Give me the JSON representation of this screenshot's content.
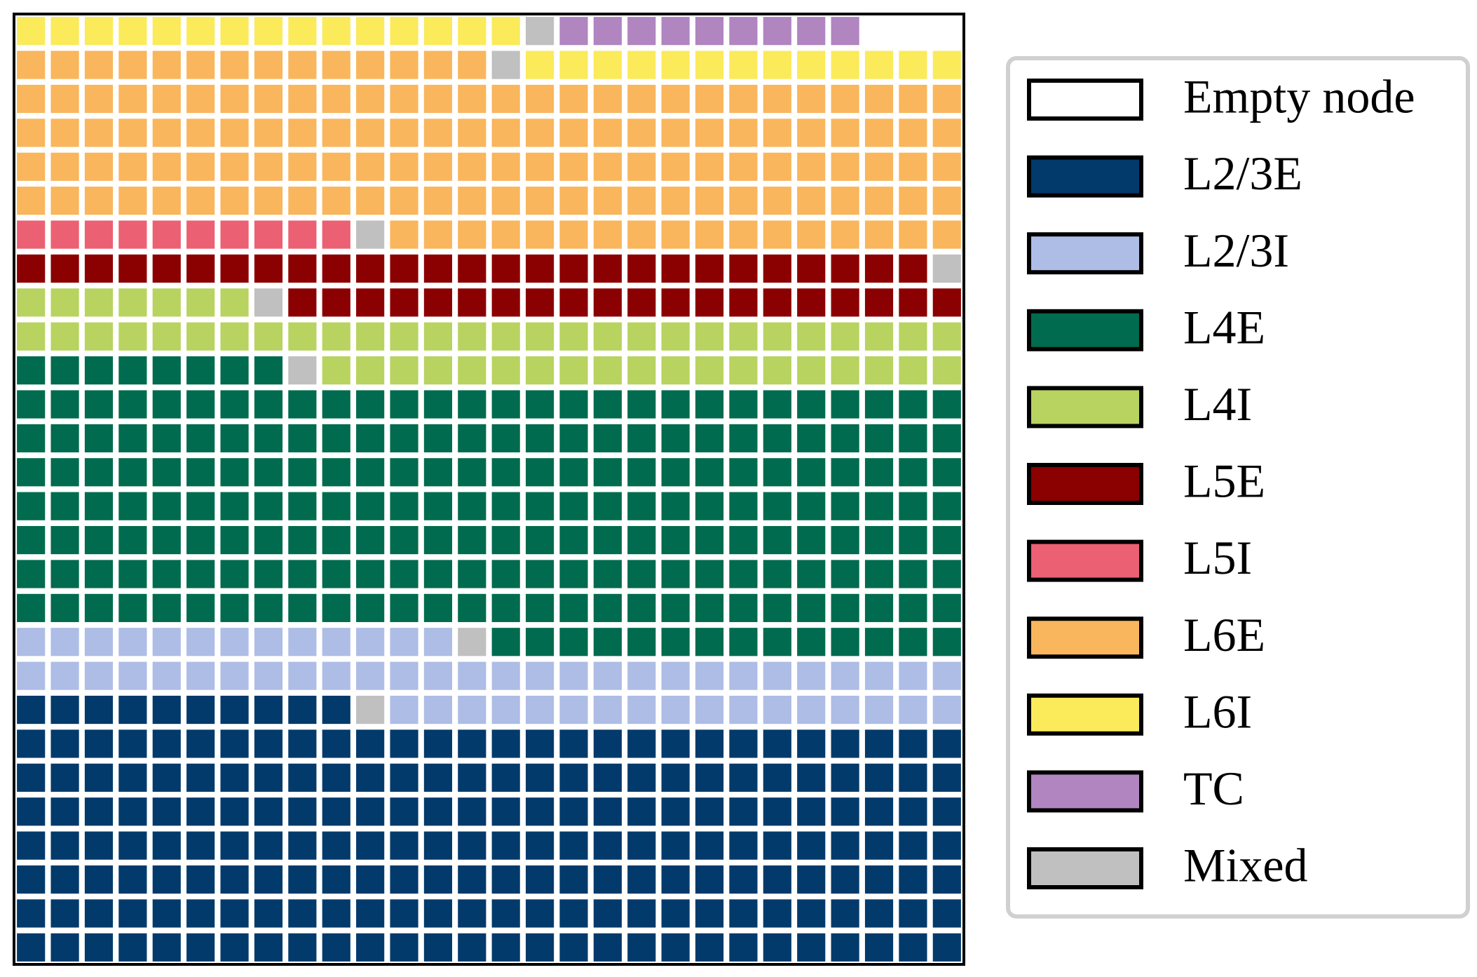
{
  "chart_data": {
    "type": "waffle",
    "series": [
      {
        "name": "Empty node",
        "color": "#ffffff",
        "value": 3
      },
      {
        "name": "L2/3E",
        "color": "#023a6b",
        "value": 206
      },
      {
        "name": "L2/3I",
        "color": "#aebde6",
        "value": 58
      },
      {
        "name": "L4E",
        "color": "#006b4e",
        "value": 218
      },
      {
        "name": "L4I",
        "color": "#b8d35f",
        "value": 54
      },
      {
        "name": "L5E",
        "color": "#8b0000",
        "value": 47
      },
      {
        "name": "L5I",
        "color": "#ec6073",
        "value": 10
      },
      {
        "name": "L6E",
        "color": "#f9b65c",
        "value": 143
      },
      {
        "name": "L6I",
        "color": "#fbea5a",
        "value": 28
      },
      {
        "name": "TC",
        "color": "#b085c0",
        "value": 9
      },
      {
        "name": "Mixed",
        "color": "#c0c0c0",
        "value": 8
      }
    ],
    "legend": "right"
  }
}
